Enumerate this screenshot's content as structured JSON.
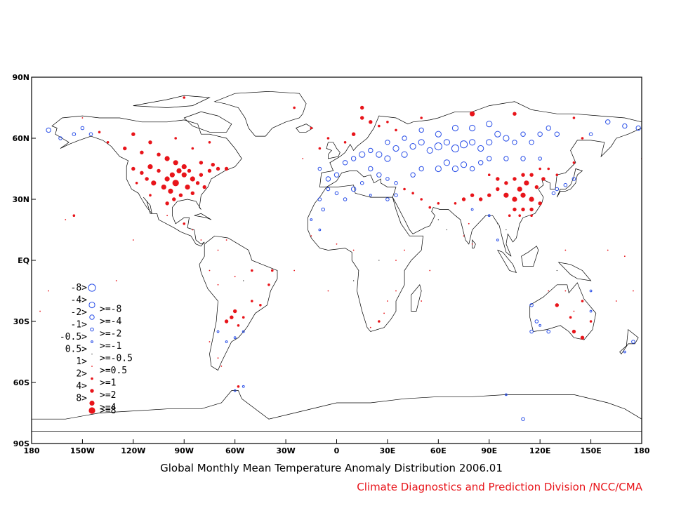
{
  "title": "Global Monthly Mean Temperature Anomaly Distribution 2006.01",
  "credit": "Climate Diagnostics and Prediction Division /NCC/CMA",
  "colors": {
    "warm": "#e8141a",
    "cold": "#2b50e8",
    "credit": "#e8141a",
    "coast": "#000000"
  },
  "map": {
    "lon_range": [
      -180,
      180
    ],
    "lat_range": [
      -90,
      90
    ]
  },
  "axes": {
    "lat_ticks": [
      {
        "value": 90,
        "label": "90N"
      },
      {
        "value": 60,
        "label": "60N"
      },
      {
        "value": 30,
        "label": "30N"
      },
      {
        "value": 0,
        "label": "EQ"
      },
      {
        "value": -30,
        "label": "30S"
      },
      {
        "value": -60,
        "label": "60S"
      },
      {
        "value": -90,
        "label": "90S"
      }
    ],
    "lon_ticks": [
      {
        "value": -180,
        "label": "180"
      },
      {
        "value": -150,
        "label": "150W"
      },
      {
        "value": -120,
        "label": "120W"
      },
      {
        "value": -90,
        "label": "90W"
      },
      {
        "value": -60,
        "label": "60W"
      },
      {
        "value": -30,
        "label": "30W"
      },
      {
        "value": 0,
        "label": "0"
      },
      {
        "value": 30,
        "label": "30E"
      },
      {
        "value": 60,
        "label": "60E"
      },
      {
        "value": 90,
        "label": "90E"
      },
      {
        "value": 120,
        "label": "120E"
      },
      {
        "value": 150,
        "label": "150E"
      },
      {
        "value": 180,
        "label": "180"
      }
    ]
  },
  "legend": [
    {
      "left": "-8>",
      "right": "",
      "kind": "cold",
      "level": 5
    },
    {
      "left": "-4>",
      "right": ">=-8",
      "kind": "cold",
      "level": 4
    },
    {
      "left": "-2>",
      "right": ">=-4",
      "kind": "cold",
      "level": 3
    },
    {
      "left": "-1>",
      "right": ">=-2",
      "kind": "cold",
      "level": 2
    },
    {
      "left": "-0.5>",
      "right": ">=-1",
      "kind": "cold",
      "level": 1
    },
    {
      "left": "0.5>",
      "right": ">=-0.5",
      "kind": "neutral",
      "level": 0
    },
    {
      "left": "1>",
      "right": ">=0.5",
      "kind": "warm",
      "level": 1
    },
    {
      "left": "2>",
      "right": ">=1",
      "kind": "warm",
      "level": 2
    },
    {
      "left": "4>",
      "right": ">=2",
      "kind": "warm",
      "level": 3
    },
    {
      "left": "8>",
      "right": ">=4",
      "kind": "warm",
      "level": 4
    },
    {
      "left": "",
      "right": ">=8",
      "kind": "warm",
      "level": 5
    }
  ],
  "stations": [
    {
      "lon": -100,
      "lat": 40,
      "a": 4
    },
    {
      "lon": -95,
      "lat": 38,
      "a": 5
    },
    {
      "lon": -90,
      "lat": 42,
      "a": 4
    },
    {
      "lon": -85,
      "lat": 40,
      "a": 4
    },
    {
      "lon": -105,
      "lat": 44,
      "a": 3
    },
    {
      "lon": -110,
      "lat": 46,
      "a": 4
    },
    {
      "lon": -115,
      "lat": 43,
      "a": 3
    },
    {
      "lon": -120,
      "lat": 45,
      "a": 3
    },
    {
      "lon": -98,
      "lat": 34,
      "a": 4
    },
    {
      "lon": -92,
      "lat": 32,
      "a": 3
    },
    {
      "lon": -88,
      "lat": 36,
      "a": 4
    },
    {
      "lon": -82,
      "lat": 38,
      "a": 3
    },
    {
      "lon": -80,
      "lat": 42,
      "a": 3
    },
    {
      "lon": -75,
      "lat": 44,
      "a": 3
    },
    {
      "lon": -70,
      "lat": 45,
      "a": 3
    },
    {
      "lon": -102,
      "lat": 36,
      "a": 4
    },
    {
      "lon": -96,
      "lat": 30,
      "a": 3
    },
    {
      "lon": -85,
      "lat": 33,
      "a": 3
    },
    {
      "lon": -78,
      "lat": 36,
      "a": 3
    },
    {
      "lon": -108,
      "lat": 38,
      "a": 4
    },
    {
      "lon": -112,
      "lat": 40,
      "a": 3
    },
    {
      "lon": -118,
      "lat": 38,
      "a": 2
    },
    {
      "lon": -90,
      "lat": 46,
      "a": 4
    },
    {
      "lon": -95,
      "lat": 48,
      "a": 4
    },
    {
      "lon": -100,
      "lat": 50,
      "a": 4
    },
    {
      "lon": -105,
      "lat": 52,
      "a": 3
    },
    {
      "lon": -115,
      "lat": 53,
      "a": 3
    },
    {
      "lon": -80,
      "lat": 48,
      "a": 3
    },
    {
      "lon": -73,
      "lat": 47,
      "a": 3
    },
    {
      "lon": -65,
      "lat": 45,
      "a": 3
    },
    {
      "lon": -97,
      "lat": 42,
      "a": 4
    },
    {
      "lon": -93,
      "lat": 44,
      "a": 4
    },
    {
      "lon": -87,
      "lat": 44,
      "a": 3
    },
    {
      "lon": -100,
      "lat": 28,
      "a": 3
    },
    {
      "lon": -110,
      "lat": 32,
      "a": 2
    },
    {
      "lon": -125,
      "lat": 55,
      "a": 3
    },
    {
      "lon": -135,
      "lat": 58,
      "a": 2
    },
    {
      "lon": -140,
      "lat": 63,
      "a": 2
    },
    {
      "lon": -120,
      "lat": 62,
      "a": 3
    },
    {
      "lon": -110,
      "lat": 58,
      "a": 3
    },
    {
      "lon": -95,
      "lat": 60,
      "a": 2
    },
    {
      "lon": -85,
      "lat": 55,
      "a": 2
    },
    {
      "lon": -75,
      "lat": 58,
      "a": 2
    },
    {
      "lon": -90,
      "lat": 80,
      "a": 2
    },
    {
      "lon": -15,
      "lat": 65,
      "a": 2
    },
    {
      "lon": -25,
      "lat": 75,
      "a": 2
    },
    {
      "lon": -150,
      "lat": 70,
      "a": 1
    },
    {
      "lon": -163,
      "lat": 60,
      "a": -2
    },
    {
      "lon": -155,
      "lat": 62,
      "a": -2
    },
    {
      "lon": -150,
      "lat": 65,
      "a": -2
    },
    {
      "lon": -170,
      "lat": 64,
      "a": -3
    },
    {
      "lon": -145,
      "lat": 62,
      "a": -2
    },
    {
      "lon": -155,
      "lat": 22,
      "a": 2
    },
    {
      "lon": -160,
      "lat": 20,
      "a": 1
    },
    {
      "lon": -10,
      "lat": 45,
      "a": -2
    },
    {
      "lon": -5,
      "lat": 40,
      "a": -3
    },
    {
      "lon": 0,
      "lat": 42,
      "a": -3
    },
    {
      "lon": 5,
      "lat": 48,
      "a": -3
    },
    {
      "lon": 10,
      "lat": 50,
      "a": -3
    },
    {
      "lon": 15,
      "lat": 52,
      "a": -4
    },
    {
      "lon": 20,
      "lat": 54,
      "a": -3
    },
    {
      "lon": 25,
      "lat": 52,
      "a": -4
    },
    {
      "lon": 30,
      "lat": 50,
      "a": -4
    },
    {
      "lon": 35,
      "lat": 55,
      "a": -4
    },
    {
      "lon": 40,
      "lat": 52,
      "a": -4
    },
    {
      "lon": 45,
      "lat": 56,
      "a": -4
    },
    {
      "lon": 50,
      "lat": 58,
      "a": -4
    },
    {
      "lon": 55,
      "lat": 54,
      "a": -4
    },
    {
      "lon": 60,
      "lat": 56,
      "a": -5
    },
    {
      "lon": 65,
      "lat": 58,
      "a": -4
    },
    {
      "lon": 70,
      "lat": 55,
      "a": -5
    },
    {
      "lon": 75,
      "lat": 57,
      "a": -5
    },
    {
      "lon": 80,
      "lat": 58,
      "a": -4
    },
    {
      "lon": 85,
      "lat": 55,
      "a": -4
    },
    {
      "lon": 90,
      "lat": 58,
      "a": -4
    },
    {
      "lon": 95,
      "lat": 62,
      "a": -4
    },
    {
      "lon": 100,
      "lat": 60,
      "a": -4
    },
    {
      "lon": 105,
      "lat": 58,
      "a": -3
    },
    {
      "lon": 110,
      "lat": 62,
      "a": -3
    },
    {
      "lon": 115,
      "lat": 58,
      "a": -3
    },
    {
      "lon": 120,
      "lat": 62,
      "a": -3
    },
    {
      "lon": 125,
      "lat": 65,
      "a": -3
    },
    {
      "lon": 130,
      "lat": 62,
      "a": -3
    },
    {
      "lon": 70,
      "lat": 65,
      "a": -4
    },
    {
      "lon": 80,
      "lat": 65,
      "a": -4
    },
    {
      "lon": 90,
      "lat": 67,
      "a": -4
    },
    {
      "lon": 60,
      "lat": 62,
      "a": -4
    },
    {
      "lon": 50,
      "lat": 64,
      "a": -3
    },
    {
      "lon": 40,
      "lat": 60,
      "a": -3
    },
    {
      "lon": 30,
      "lat": 58,
      "a": -3
    },
    {
      "lon": 20,
      "lat": 45,
      "a": -3
    },
    {
      "lon": 25,
      "lat": 42,
      "a": -3
    },
    {
      "lon": 30,
      "lat": 40,
      "a": -2
    },
    {
      "lon": 35,
      "lat": 38,
      "a": -2
    },
    {
      "lon": 45,
      "lat": 42,
      "a": -3
    },
    {
      "lon": 50,
      "lat": 45,
      "a": -3
    },
    {
      "lon": 60,
      "lat": 45,
      "a": -4
    },
    {
      "lon": 65,
      "lat": 48,
      "a": -4
    },
    {
      "lon": 70,
      "lat": 45,
      "a": -4
    },
    {
      "lon": 75,
      "lat": 47,
      "a": -4
    },
    {
      "lon": 80,
      "lat": 45,
      "a": -3
    },
    {
      "lon": 85,
      "lat": 48,
      "a": -3
    },
    {
      "lon": 90,
      "lat": 50,
      "a": -3
    },
    {
      "lon": 100,
      "lat": 50,
      "a": -3
    },
    {
      "lon": 110,
      "lat": 50,
      "a": -3
    },
    {
      "lon": 120,
      "lat": 50,
      "a": -2
    },
    {
      "lon": -5,
      "lat": 35,
      "a": -2
    },
    {
      "lon": 0,
      "lat": 33,
      "a": -2
    },
    {
      "lon": 10,
      "lat": 35,
      "a": -3
    },
    {
      "lon": 15,
      "lat": 38,
      "a": -2
    },
    {
      "lon": -10,
      "lat": 30,
      "a": -2
    },
    {
      "lon": -8,
      "lat": 25,
      "a": -2
    },
    {
      "lon": -10,
      "lat": 15,
      "a": -1
    },
    {
      "lon": -15,
      "lat": 20,
      "a": -1
    },
    {
      "lon": 5,
      "lat": 30,
      "a": -2
    },
    {
      "lon": 20,
      "lat": 32,
      "a": -1
    },
    {
      "lon": 30,
      "lat": 30,
      "a": -2
    },
    {
      "lon": 35,
      "lat": 32,
      "a": -2
    },
    {
      "lon": 130,
      "lat": 35,
      "a": -2
    },
    {
      "lon": 135,
      "lat": 37,
      "a": -2
    },
    {
      "lon": 140,
      "lat": 40,
      "a": -2
    },
    {
      "lon": 128,
      "lat": 33,
      "a": -2
    },
    {
      "lon": 160,
      "lat": 68,
      "a": -3
    },
    {
      "lon": 170,
      "lat": 66,
      "a": -3
    },
    {
      "lon": 178,
      "lat": 65,
      "a": -3
    },
    {
      "lon": 150,
      "lat": 62,
      "a": -2
    },
    {
      "lon": 95,
      "lat": 10,
      "a": -1
    },
    {
      "lon": 90,
      "lat": 22,
      "a": -1
    },
    {
      "lon": 80,
      "lat": 25,
      "a": -1
    },
    {
      "lon": -70,
      "lat": -35,
      "a": -1
    },
    {
      "lon": -65,
      "lat": -40,
      "a": -1
    },
    {
      "lon": -60,
      "lat": -38,
      "a": -1
    },
    {
      "lon": -55,
      "lat": -35,
      "a": -1
    },
    {
      "lon": 115,
      "lat": -22,
      "a": -2
    },
    {
      "lon": 118,
      "lat": -30,
      "a": -2
    },
    {
      "lon": 125,
      "lat": -35,
      "a": -2
    },
    {
      "lon": 115,
      "lat": -35,
      "a": -2
    },
    {
      "lon": 120,
      "lat": -32,
      "a": -1
    },
    {
      "lon": 150,
      "lat": -15,
      "a": -1
    },
    {
      "lon": 175,
      "lat": -40,
      "a": -2
    },
    {
      "lon": 170,
      "lat": -45,
      "a": -1
    },
    {
      "lon": 110,
      "lat": -78,
      "a": -2
    },
    {
      "lon": -60,
      "lat": -64,
      "a": -1
    },
    {
      "lon": -55,
      "lat": -62,
      "a": -1
    },
    {
      "lon": 100,
      "lat": -66,
      "a": -1
    },
    {
      "lon": 150,
      "lat": -25,
      "a": -1
    },
    {
      "lon": 100,
      "lat": 32,
      "a": 4
    },
    {
      "lon": 105,
      "lat": 30,
      "a": 4
    },
    {
      "lon": 110,
      "lat": 32,
      "a": 4
    },
    {
      "lon": 115,
      "lat": 30,
      "a": 4
    },
    {
      "lon": 108,
      "lat": 35,
      "a": 4
    },
    {
      "lon": 112,
      "lat": 38,
      "a": 4
    },
    {
      "lon": 118,
      "lat": 36,
      "a": 3
    },
    {
      "lon": 122,
      "lat": 40,
      "a": 3
    },
    {
      "lon": 100,
      "lat": 38,
      "a": 3
    },
    {
      "lon": 95,
      "lat": 35,
      "a": 3
    },
    {
      "lon": 90,
      "lat": 32,
      "a": 3
    },
    {
      "lon": 85,
      "lat": 30,
      "a": 3
    },
    {
      "lon": 80,
      "lat": 32,
      "a": 3
    },
    {
      "lon": 75,
      "lat": 30,
      "a": 3
    },
    {
      "lon": 70,
      "lat": 28,
      "a": 2
    },
    {
      "lon": 105,
      "lat": 25,
      "a": 3
    },
    {
      "lon": 110,
      "lat": 25,
      "a": 3
    },
    {
      "lon": 115,
      "lat": 25,
      "a": 3
    },
    {
      "lon": 120,
      "lat": 28,
      "a": 3
    },
    {
      "lon": 102,
      "lat": 22,
      "a": 2
    },
    {
      "lon": 108,
      "lat": 22,
      "a": 2
    },
    {
      "lon": 115,
      "lat": 22,
      "a": 2
    },
    {
      "lon": 110,
      "lat": 42,
      "a": 3
    },
    {
      "lon": 115,
      "lat": 42,
      "a": 3
    },
    {
      "lon": 120,
      "lat": 45,
      "a": 2
    },
    {
      "lon": 105,
      "lat": 40,
      "a": 3
    },
    {
      "lon": 95,
      "lat": 40,
      "a": 3
    },
    {
      "lon": 90,
      "lat": 42,
      "a": 2
    },
    {
      "lon": 60,
      "lat": 28,
      "a": 2
    },
    {
      "lon": 55,
      "lat": 26,
      "a": 2
    },
    {
      "lon": 50,
      "lat": 30,
      "a": 2
    },
    {
      "lon": 45,
      "lat": 33,
      "a": 2
    },
    {
      "lon": 40,
      "lat": 35,
      "a": 2
    },
    {
      "lon": 78,
      "lat": 18,
      "a": 1
    },
    {
      "lon": 75,
      "lat": 12,
      "a": 1
    },
    {
      "lon": 80,
      "lat": 8,
      "a": 1
    },
    {
      "lon": 130,
      "lat": 42,
      "a": 2
    },
    {
      "lon": 125,
      "lat": 45,
      "a": 2
    },
    {
      "lon": 140,
      "lat": 48,
      "a": 2
    },
    {
      "lon": 145,
      "lat": 60,
      "a": 2
    },
    {
      "lon": 140,
      "lat": 70,
      "a": 2
    },
    {
      "lon": 80,
      "lat": 72,
      "a": 4
    },
    {
      "lon": 105,
      "lat": 72,
      "a": 3
    },
    {
      "lon": 15,
      "lat": 70,
      "a": 3
    },
    {
      "lon": 20,
      "lat": 68,
      "a": 3
    },
    {
      "lon": 25,
      "lat": 66,
      "a": 2
    },
    {
      "lon": 10,
      "lat": 62,
      "a": 3
    },
    {
      "lon": 5,
      "lat": 58,
      "a": 2
    },
    {
      "lon": 30,
      "lat": 68,
      "a": 2
    },
    {
      "lon": 35,
      "lat": 64,
      "a": 2
    },
    {
      "lon": -5,
      "lat": 60,
      "a": 2
    },
    {
      "lon": -10,
      "lat": 55,
      "a": 2
    },
    {
      "lon": 15,
      "lat": 75,
      "a": 3
    },
    {
      "lon": 50,
      "lat": 70,
      "a": 2
    },
    {
      "lon": -20,
      "lat": 50,
      "a": 1
    },
    {
      "lon": 180,
      "lat": 50,
      "a": 1
    },
    {
      "lon": -60,
      "lat": -25,
      "a": 3
    },
    {
      "lon": -65,
      "lat": -30,
      "a": 3
    },
    {
      "lon": -58,
      "lat": -32,
      "a": 2
    },
    {
      "lon": -62,
      "lat": -28,
      "a": 3
    },
    {
      "lon": -55,
      "lat": -28,
      "a": 2
    },
    {
      "lon": -50,
      "lat": -20,
      "a": 2
    },
    {
      "lon": -45,
      "lat": -22,
      "a": 2
    },
    {
      "lon": -40,
      "lat": -12,
      "a": 2
    },
    {
      "lon": -38,
      "lat": -5,
      "a": 2
    },
    {
      "lon": -50,
      "lat": -5,
      "a": 2
    },
    {
      "lon": -60,
      "lat": -8,
      "a": 1
    },
    {
      "lon": -70,
      "lat": -12,
      "a": 1
    },
    {
      "lon": -75,
      "lat": -5,
      "a": 1
    },
    {
      "lon": -70,
      "lat": 5,
      "a": 1
    },
    {
      "lon": -65,
      "lat": 10,
      "a": 1
    },
    {
      "lon": -80,
      "lat": 10,
      "a": 1
    },
    {
      "lon": -85,
      "lat": 15,
      "a": 1
    },
    {
      "lon": -90,
      "lat": 18,
      "a": 2
    },
    {
      "lon": -100,
      "lat": 22,
      "a": 1
    },
    {
      "lon": -75,
      "lat": -40,
      "a": 1
    },
    {
      "lon": -70,
      "lat": -48,
      "a": 1
    },
    {
      "lon": -68,
      "lat": -52,
      "a": 1
    },
    {
      "lon": -58,
      "lat": -62,
      "a": 2
    },
    {
      "lon": 140,
      "lat": -35,
      "a": 3
    },
    {
      "lon": 145,
      "lat": -38,
      "a": 3
    },
    {
      "lon": 150,
      "lat": -30,
      "a": 2
    },
    {
      "lon": 138,
      "lat": -28,
      "a": 2
    },
    {
      "lon": 145,
      "lat": -20,
      "a": 2
    },
    {
      "lon": 130,
      "lat": -22,
      "a": 3
    },
    {
      "lon": 140,
      "lat": -25,
      "a": 1
    },
    {
      "lon": 135,
      "lat": -15,
      "a": 1
    },
    {
      "lon": 125,
      "lat": -15,
      "a": 1
    },
    {
      "lon": 30,
      "lat": -20,
      "a": 1
    },
    {
      "lon": 25,
      "lat": -30,
      "a": 2
    },
    {
      "lon": 28,
      "lat": -26,
      "a": 1
    },
    {
      "lon": 20,
      "lat": -33,
      "a": 1
    },
    {
      "lon": 35,
      "lat": -15,
      "a": 1
    },
    {
      "lon": 40,
      "lat": 5,
      "a": 1
    },
    {
      "lon": 35,
      "lat": 0,
      "a": 1
    },
    {
      "lon": 10,
      "lat": 5,
      "a": 1
    },
    {
      "lon": 0,
      "lat": 8,
      "a": 1
    },
    {
      "lon": -15,
      "lat": 12,
      "a": 1
    },
    {
      "lon": 135,
      "lat": 5,
      "a": 1
    },
    {
      "lon": 160,
      "lat": 5,
      "a": 1
    },
    {
      "lon": 170,
      "lat": 2,
      "a": 1
    },
    {
      "lon": 175,
      "lat": -15,
      "a": 1
    },
    {
      "lon": 165,
      "lat": -20,
      "a": 1
    },
    {
      "lon": 50,
      "lat": -20,
      "a": 1
    },
    {
      "lon": 55,
      "lat": -5,
      "a": 1
    },
    {
      "lon": -170,
      "lat": -15,
      "a": 1
    },
    {
      "lon": -175,
      "lat": -25,
      "a": 1
    },
    {
      "lon": -120,
      "lat": 10,
      "a": 1
    },
    {
      "lon": -130,
      "lat": -10,
      "a": 1
    },
    {
      "lon": -25,
      "lat": -5,
      "a": 1
    },
    {
      "lon": -5,
      "lat": -15,
      "a": 1
    },
    {
      "lon": 60,
      "lat": 20,
      "a": 0
    },
    {
      "lon": 65,
      "lat": 15,
      "a": 0
    },
    {
      "lon": 95,
      "lat": 18,
      "a": 0
    },
    {
      "lon": 100,
      "lat": 15,
      "a": 0
    },
    {
      "lon": 25,
      "lat": 0,
      "a": 0
    },
    {
      "lon": 10,
      "lat": -10,
      "a": 0
    },
    {
      "lon": -55,
      "lat": -10,
      "a": 0
    },
    {
      "lon": 130,
      "lat": -5,
      "a": 0
    }
  ]
}
